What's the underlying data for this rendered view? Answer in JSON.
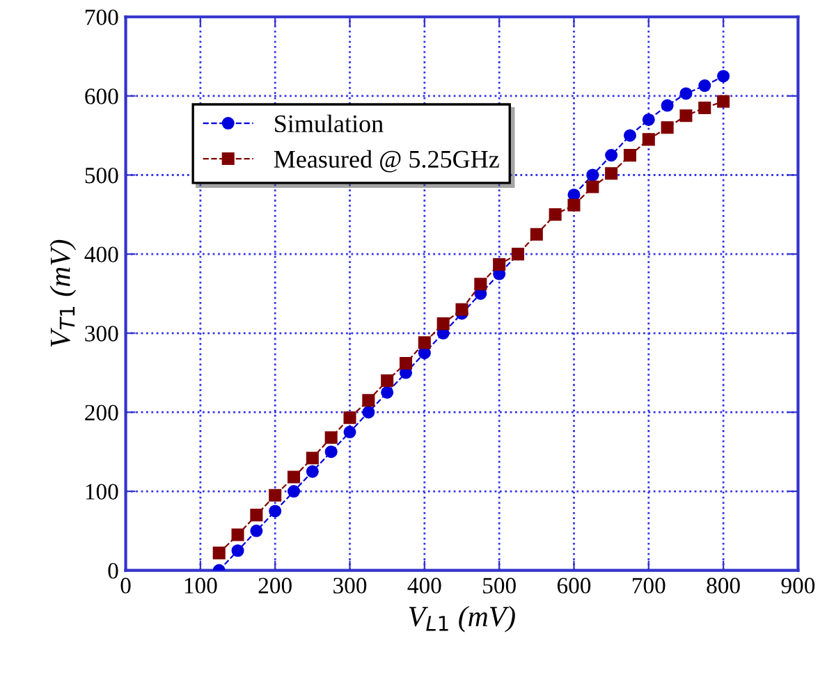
{
  "chart_data": {
    "type": "line",
    "xlabel": "V$_{L1}$ (mV)",
    "ylabel": "V$_{T1}$ (mV)",
    "x": [
      125,
      150,
      175,
      200,
      225,
      250,
      275,
      300,
      325,
      350,
      375,
      400,
      425,
      450,
      475,
      500,
      525,
      550,
      575,
      600,
      625,
      650,
      675,
      700,
      725,
      750,
      775,
      800
    ],
    "series": [
      {
        "name": "Simulation",
        "color": "#0000dd",
        "marker": "circle",
        "values": [
          0,
          25,
          50,
          75,
          100,
          125,
          150,
          175,
          200,
          225,
          250,
          275,
          300,
          325,
          350,
          375,
          400,
          null,
          null,
          475,
          500,
          525,
          550,
          570,
          588,
          603,
          613,
          625
        ]
      },
      {
        "name": "Measured @ 5.25GHz",
        "color": "#800000",
        "marker": "square",
        "values": [
          22,
          45,
          70,
          95,
          118,
          142,
          168,
          193,
          215,
          240,
          262,
          288,
          312,
          330,
          362,
          387,
          400,
          425,
          450,
          462,
          485,
          502,
          525,
          545,
          560,
          575,
          585,
          593
        ]
      }
    ],
    "line_style": "dashed",
    "xlim": [
      0,
      900
    ],
    "ylim": [
      0,
      700
    ],
    "xticks": [
      0,
      100,
      200,
      300,
      400,
      500,
      600,
      700,
      800,
      900
    ],
    "yticks": [
      0,
      100,
      200,
      300,
      400,
      500,
      600,
      700
    ],
    "grid": true,
    "legend": "top left"
  }
}
